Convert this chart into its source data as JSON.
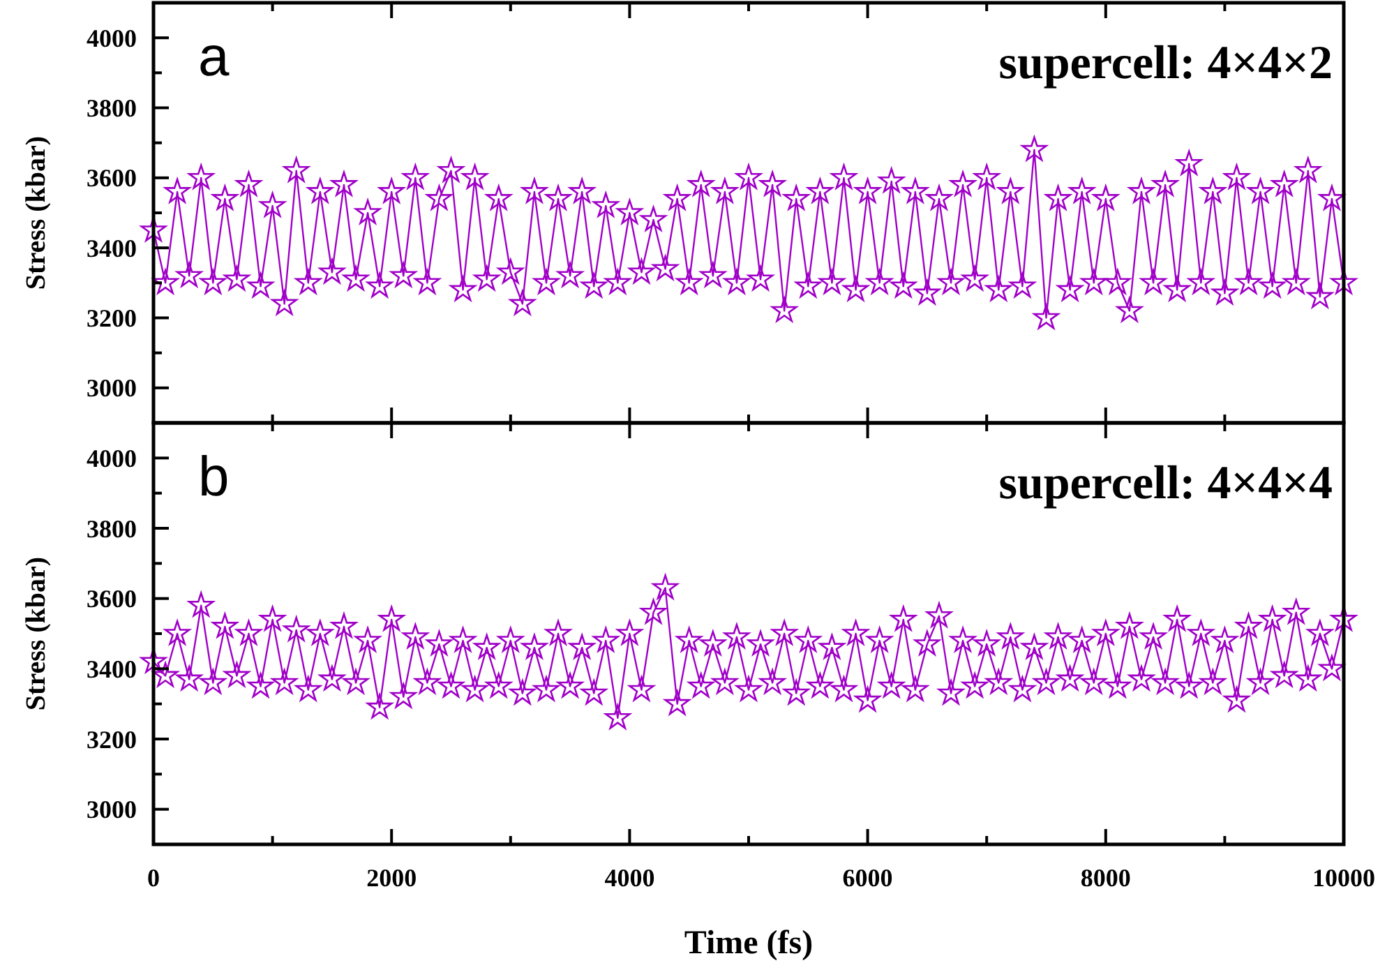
{
  "chart_data": [
    {
      "type": "line",
      "ylabel": "Stress (kbar)",
      "annotations": [
        "a",
        "supercell: 4×4×2"
      ],
      "xlim": [
        0,
        10000
      ],
      "ylim": [
        2900,
        4100
      ],
      "xticks": [
        0,
        {
          "value": 1000,
          "label": null
        },
        2000,
        {
          "value": 3000,
          "label": null
        },
        4000,
        {
          "value": 5000,
          "label": null
        },
        6000,
        {
          "value": 7000,
          "label": null
        },
        8000,
        {
          "value": 9000,
          "label": null
        },
        10000
      ],
      "yticks": [
        3000,
        {
          "value": 3100,
          "label": null
        },
        3200,
        {
          "value": 3300,
          "label": null
        },
        3400,
        {
          "value": 3500,
          "label": null
        },
        3600,
        {
          "value": 3700,
          "label": null
        },
        3800,
        {
          "value": 3900,
          "label": null
        },
        4000
      ],
      "tick_labels": "y",
      "marker": "star",
      "line_style": "solid",
      "grid": false,
      "x": [
        0,
        100,
        200,
        300,
        400,
        500,
        600,
        700,
        800,
        900,
        1000,
        1100,
        1200,
        1300,
        1400,
        1500,
        1600,
        1700,
        1800,
        1900,
        2000,
        2100,
        2200,
        2300,
        2400,
        2500,
        2600,
        2700,
        2800,
        2900,
        3000,
        3100,
        3200,
        3300,
        3400,
        3500,
        3600,
        3700,
        3800,
        3900,
        4000,
        4100,
        4200,
        4300,
        4400,
        4500,
        4600,
        4700,
        4800,
        4900,
        5000,
        5100,
        5200,
        5300,
        5400,
        5500,
        5600,
        5700,
        5800,
        5900,
        6000,
        6100,
        6200,
        6300,
        6400,
        6500,
        6600,
        6700,
        6800,
        6900,
        7000,
        7100,
        7200,
        7300,
        7400,
        7500,
        7600,
        7700,
        7800,
        7900,
        8000,
        8100,
        8200,
        8300,
        8400,
        8500,
        8600,
        8700,
        8800,
        8900,
        9000,
        9100,
        9200,
        9300,
        9400,
        9500,
        9600,
        9700,
        9800,
        9900,
        10000
      ],
      "series": [
        {
          "color": "#a000c8",
          "values": [
            3450,
            3300,
            3560,
            3320,
            3600,
            3300,
            3540,
            3310,
            3580,
            3290,
            3520,
            3240,
            3620,
            3300,
            3560,
            3330,
            3580,
            3310,
            3500,
            3290,
            3560,
            3320,
            3600,
            3300,
            3540,
            3620,
            3280,
            3600,
            3310,
            3540,
            3330,
            3240,
            3560,
            3300,
            3540,
            3320,
            3560,
            3290,
            3520,
            3300,
            3500,
            3330,
            3480,
            3340,
            3540,
            3300,
            3580,
            3320,
            3560,
            3300,
            3600,
            3310,
            3580,
            3220,
            3540,
            3290,
            3560,
            3300,
            3600,
            3280,
            3560,
            3300,
            3590,
            3290,
            3560,
            3270,
            3540,
            3300,
            3580,
            3310,
            3600,
            3280,
            3560,
            3290,
            3680,
            3200,
            3540,
            3280,
            3560,
            3300,
            3540,
            3300,
            3220,
            3560,
            3300,
            3580,
            3280,
            3640,
            3300,
            3560,
            3270,
            3600,
            3300,
            3560,
            3290,
            3580,
            3300,
            3620,
            3260,
            3540,
            3300
          ]
        }
      ]
    },
    {
      "type": "line",
      "ylabel": "Stress (kbar)",
      "xlabel": "Time (fs)",
      "annotations": [
        "b",
        "supercell: 4×4×4"
      ],
      "xlim": [
        0,
        10000
      ],
      "ylim": [
        2900,
        4100
      ],
      "xticks": [
        0,
        {
          "value": 1000,
          "label": null
        },
        2000,
        {
          "value": 3000,
          "label": null
        },
        4000,
        {
          "value": 5000,
          "label": null
        },
        6000,
        {
          "value": 7000,
          "label": null
        },
        8000,
        {
          "value": 9000,
          "label": null
        },
        10000
      ],
      "yticks": [
        3000,
        {
          "value": 3100,
          "label": null
        },
        3200,
        {
          "value": 3300,
          "label": null
        },
        3400,
        {
          "value": 3500,
          "label": null
        },
        3600,
        {
          "value": 3700,
          "label": null
        },
        3800,
        {
          "value": 3900,
          "label": null
        },
        4000
      ],
      "marker": "star",
      "line_style": "solid",
      "grid": false,
      "x": [
        0,
        100,
        200,
        300,
        400,
        500,
        600,
        700,
        800,
        900,
        1000,
        1100,
        1200,
        1300,
        1400,
        1500,
        1600,
        1700,
        1800,
        1900,
        2000,
        2100,
        2200,
        2300,
        2400,
        2500,
        2600,
        2700,
        2800,
        2900,
        3000,
        3100,
        3200,
        3300,
        3400,
        3500,
        3600,
        3700,
        3800,
        3900,
        4000,
        4100,
        4200,
        4300,
        4400,
        4500,
        4600,
        4700,
        4800,
        4900,
        5000,
        5100,
        5200,
        5300,
        5400,
        5500,
        5600,
        5700,
        5800,
        5900,
        6000,
        6100,
        6200,
        6300,
        6400,
        6500,
        6600,
        6700,
        6800,
        6900,
        7000,
        7100,
        7200,
        7300,
        7400,
        7500,
        7600,
        7700,
        7800,
        7900,
        8000,
        8100,
        8200,
        8300,
        8400,
        8500,
        8600,
        8700,
        8800,
        8900,
        9000,
        9100,
        9200,
        9300,
        9400,
        9500,
        9600,
        9700,
        9800,
        9900,
        10000
      ],
      "series": [
        {
          "color": "#a000c8",
          "values": [
            3420,
            3380,
            3500,
            3370,
            3580,
            3360,
            3520,
            3380,
            3500,
            3350,
            3540,
            3360,
            3510,
            3340,
            3500,
            3370,
            3520,
            3360,
            3480,
            3290,
            3540,
            3320,
            3490,
            3360,
            3470,
            3350,
            3480,
            3340,
            3460,
            3350,
            3480,
            3330,
            3460,
            3340,
            3500,
            3350,
            3460,
            3330,
            3480,
            3260,
            3500,
            3340,
            3560,
            3630,
            3300,
            3480,
            3350,
            3470,
            3360,
            3490,
            3340,
            3470,
            3360,
            3500,
            3330,
            3480,
            3350,
            3460,
            3340,
            3500,
            3310,
            3480,
            3350,
            3540,
            3340,
            3470,
            3550,
            3330,
            3480,
            3350,
            3470,
            3360,
            3490,
            3340,
            3460,
            3360,
            3490,
            3370,
            3480,
            3360,
            3500,
            3350,
            3520,
            3370,
            3490,
            3360,
            3540,
            3350,
            3500,
            3360,
            3480,
            3310,
            3520,
            3360,
            3540,
            3380,
            3560,
            3370,
            3500,
            3400,
            3540
          ]
        }
      ]
    }
  ]
}
